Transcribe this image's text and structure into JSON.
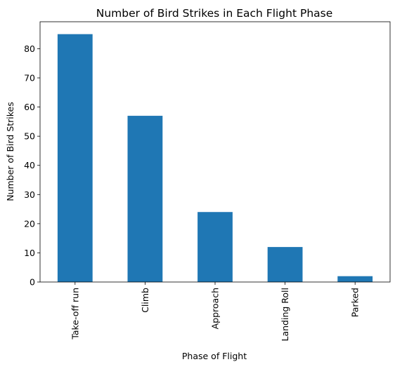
{
  "chart_data": {
    "type": "bar",
    "title": "Number of Bird Strikes in Each Flight Phase",
    "xlabel": "Phase of Flight",
    "ylabel": "Number of Bird Strikes",
    "categories": [
      "Take-off run",
      "Climb",
      "Approach",
      "Landing Roll",
      "Parked"
    ],
    "values": [
      85,
      57,
      24,
      12,
      2
    ],
    "ylim": [
      0,
      89.25
    ],
    "yticks": [
      0,
      10,
      20,
      30,
      40,
      50,
      60,
      70,
      80
    ],
    "grid": false,
    "legend": "none",
    "bar_color": "#1f77b4"
  }
}
